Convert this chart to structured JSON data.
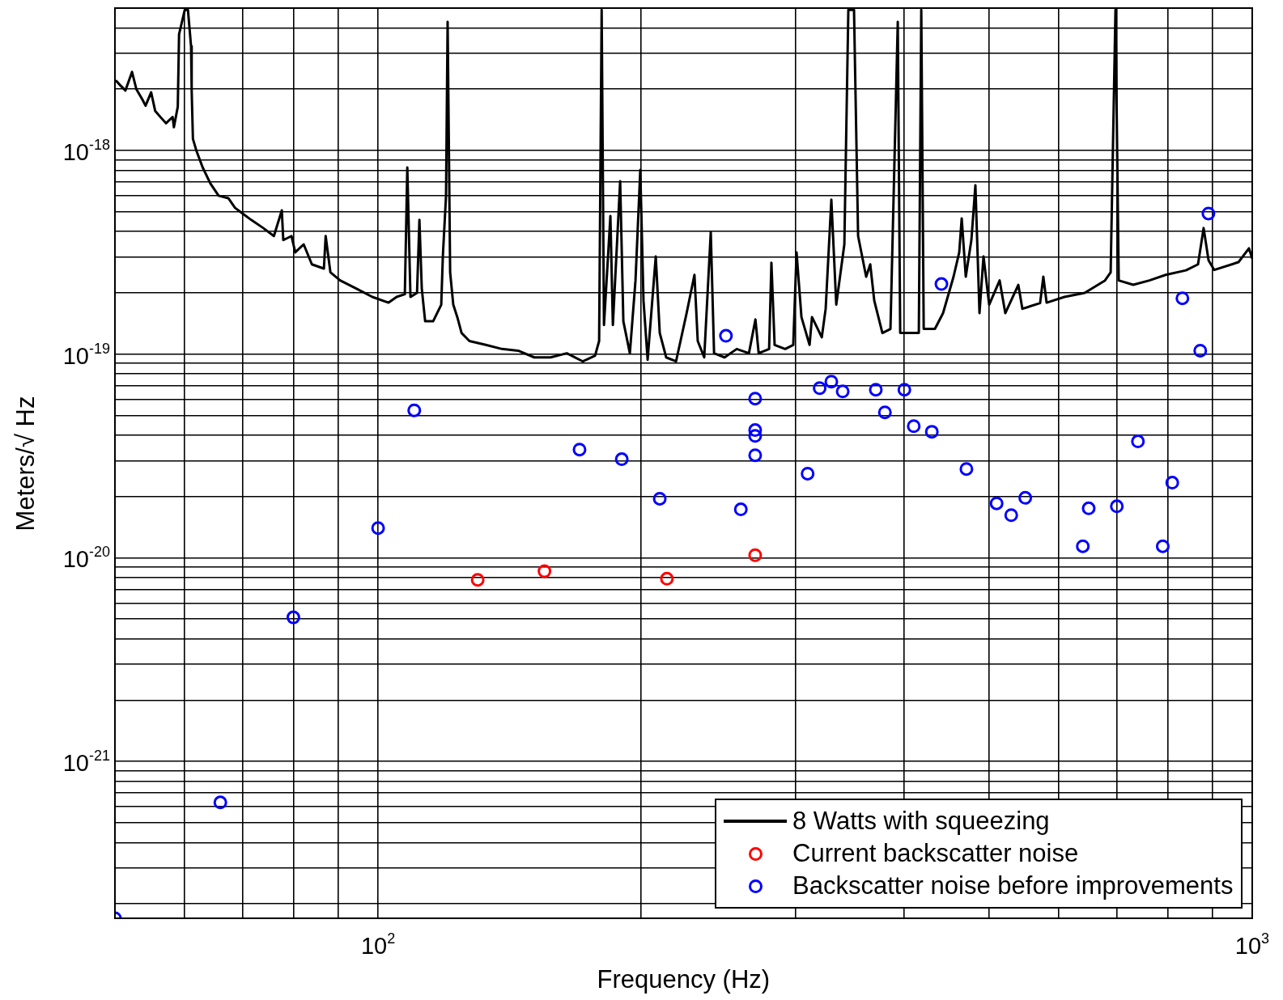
{
  "chart_data": {
    "type": "line",
    "xlabel": "Frequency (Hz)",
    "ylabel": "Meters/√ Hz",
    "log": "xy",
    "grid": true,
    "legend": "bottom right",
    "xlim": [
      50,
      1000
    ],
    "ylim": [
      1.7e-22,
      5e-18
    ],
    "xticks": [
      {
        "value": 60,
        "label": null
      },
      {
        "value": 70,
        "label": null
      },
      {
        "value": 80,
        "label": null
      },
      {
        "value": 90,
        "label": null
      },
      {
        "value": 100,
        "label": "10$^{2}$"
      },
      {
        "value": 200,
        "label": null
      },
      {
        "value": 300,
        "label": null
      },
      {
        "value": 400,
        "label": null
      },
      {
        "value": 500,
        "label": null
      },
      {
        "value": 600,
        "label": null
      },
      {
        "value": 700,
        "label": null
      },
      {
        "value": 800,
        "label": null
      },
      {
        "value": 900,
        "label": null
      },
      {
        "value": 1000,
        "label": "10$^{3}$"
      }
    ],
    "yticks": [
      {
        "value": 2e-22,
        "label": null
      },
      {
        "value": 3e-22,
        "label": null
      },
      {
        "value": 4e-22,
        "label": null
      },
      {
        "value": 5e-22,
        "label": null
      },
      {
        "value": 6e-22,
        "label": null
      },
      {
        "value": 7e-22,
        "label": null
      },
      {
        "value": 8e-22,
        "label": null
      },
      {
        "value": 9e-22,
        "label": null
      },
      {
        "value": 1e-21,
        "label": "10$^{-21}$"
      },
      {
        "value": 2e-21,
        "label": null
      },
      {
        "value": 3e-21,
        "label": null
      },
      {
        "value": 4e-21,
        "label": null
      },
      {
        "value": 5e-21,
        "label": null
      },
      {
        "value": 6e-21,
        "label": null
      },
      {
        "value": 7e-21,
        "label": null
      },
      {
        "value": 8e-21,
        "label": null
      },
      {
        "value": 9e-21,
        "label": null
      },
      {
        "value": 1e-20,
        "label": "10$^{-20}$"
      },
      {
        "value": 2e-20,
        "label": null
      },
      {
        "value": 3e-20,
        "label": null
      },
      {
        "value": 4e-20,
        "label": null
      },
      {
        "value": 5e-20,
        "label": null
      },
      {
        "value": 6e-20,
        "label": null
      },
      {
        "value": 7e-20,
        "label": null
      },
      {
        "value": 8e-20,
        "label": null
      },
      {
        "value": 9e-20,
        "label": null
      },
      {
        "value": 1e-19,
        "label": "10$^{-19}$"
      },
      {
        "value": 2e-19,
        "label": null
      },
      {
        "value": 3e-19,
        "label": null
      },
      {
        "value": 4e-19,
        "label": null
      },
      {
        "value": 5e-19,
        "label": null
      },
      {
        "value": 6e-19,
        "label": null
      },
      {
        "value": 7e-19,
        "label": null
      },
      {
        "value": 8e-19,
        "label": null
      },
      {
        "value": 9e-19,
        "label": null
      },
      {
        "value": 1e-18,
        "label": "10$^{-18}$"
      },
      {
        "value": 2e-18,
        "label": null
      },
      {
        "value": 3e-18,
        "label": null
      },
      {
        "value": 4e-18,
        "label": null
      }
    ],
    "series": [
      {
        "name": "8 Watts with squeezing",
        "marker": "none",
        "color": "#000000",
        "x": [
          50.1,
          50.7,
          51.4,
          52.3,
          52.9,
          53.7,
          54.2,
          55.0,
          55.6,
          56.6,
          57.2,
          58.2,
          58.4,
          59.0,
          59.2,
          60.1,
          60.6,
          61.1,
          61.2,
          61.4,
          62.0,
          63.0,
          64.3,
          65.7,
          67.4,
          68.6,
          70.0,
          71.6,
          73.9,
          76.0,
          77.6,
          77.9,
          79.6,
          80.4,
          82.2,
          84.0,
          86.7,
          87.1,
          88.2,
          90.5,
          94.4,
          98.5,
          102.8,
          105.0,
          107.3,
          108.0,
          108.9,
          110.8,
          111.5,
          112.2,
          113.2,
          115.6,
          118.1,
          118.6,
          119.6,
          120.1,
          120.9,
          121.9,
          123.2,
          124.6,
          127.2,
          132.8,
          138.6,
          144.6,
          150.9,
          157.5,
          164.4,
          171.5,
          177.1,
          179.0,
          180.2,
          181.3,
          184.4,
          185.6,
          189.2,
          190.8,
          194.1,
          197.0,
          199.5,
          201.2,
          203.4,
          207.8,
          210.0,
          213.6,
          219.2,
          225.4,
          230.1,
          232.1,
          236.1,
          240.2,
          242.3,
          249.1,
          257.2,
          265.6,
          270.2,
          272.5,
          280.1,
          281.8,
          284.2,
          292.2,
          298.5,
          301.1,
          305.0,
          311.6,
          313.6,
          321.8,
          325.1,
          330.0,
          334.3,
          341.5,
          345.1,
          350.3,
          354.1,
          361.7,
          365.6,
          369.5,
          377.5,
          385.6,
          393.1,
          395.6,
          406.7,
          415.5,
          418.2,
          420.9,
          433.5,
          442.9,
          455.3,
          462.2,
          465.2,
          470.2,
          477.2,
          482.3,
          487.5,
          492.7,
          500.1,
          514.1,
          521.8,
          540.0,
          545.8,
          571.9,
          576.8,
          581.8,
          609.8,
          643.2,
          678.5,
          688.7,
          697.5,
          703.5,
          730.9,
          762.7,
          796,
          839.8,
          866.9,
          879.8,
          891.3,
          904.8,
          964.5,
          991.5,
          1000
        ],
        "values": [
          2.21e-18,
          2.09e-18,
          1.97e-18,
          2.43e-18,
          2e-18,
          1.79e-18,
          1.66e-18,
          1.93e-18,
          1.56e-18,
          1.43e-18,
          1.36e-18,
          1.46e-18,
          1.3e-18,
          1.64e-18,
          3.72e-18,
          4.9e-18,
          4.9e-18,
          3.25e-18,
          1.97e-18,
          1.14e-18,
          9.9e-19,
          8.25e-19,
          6.88e-19,
          6e-19,
          5.83e-19,
          5.23e-19,
          4.9e-19,
          4.56e-19,
          4.16e-19,
          3.8e-19,
          5.08e-19,
          3.63e-19,
          3.8e-19,
          3.16e-19,
          3.46e-19,
          2.76e-19,
          2.63e-19,
          3.8e-19,
          2.52e-19,
          2.3e-19,
          2.1e-19,
          1.91e-19,
          1.79e-19,
          1.91e-19,
          1.97e-19,
          8.25e-19,
          1.91e-19,
          2e-19,
          4.56e-19,
          2.1e-19,
          1.45e-19,
          1.45e-19,
          1.75e-19,
          3.02e-19,
          6e-19,
          4.28e-18,
          2.52e-19,
          1.75e-19,
          1.52e-19,
          1.27e-19,
          1.16e-19,
          1.11e-19,
          1.06e-19,
          1.04e-19,
          9.64e-20,
          9.64e-20,
          1.01e-19,
          9.21e-20,
          9.82e-20,
          1.16e-19,
          4.9e-18,
          1.39e-19,
          4.77e-19,
          1.39e-19,
          7.07e-19,
          1.45e-19,
          1.01e-19,
          2.3e-19,
          8.03e-19,
          1.83e-19,
          9.38e-20,
          3.02e-19,
          1.27e-19,
          9.64e-20,
          9.21e-20,
          1.59e-19,
          2.45e-19,
          1.16e-19,
          9.64e-20,
          3.97e-19,
          1.01e-19,
          9.64e-20,
          1.06e-19,
          1.01e-19,
          1.48e-19,
          1.01e-19,
          1.06e-19,
          2.81e-19,
          1.11e-19,
          1.06e-19,
          1.11e-19,
          3.16e-19,
          1.52e-19,
          1.11e-19,
          1.52e-19,
          1.21e-19,
          1.67e-19,
          5.73e-19,
          1.75e-19,
          3.46e-19,
          4.9e-18,
          4.9e-18,
          3.8e-19,
          2.4e-19,
          2.76e-19,
          1.83e-19,
          1.27e-19,
          1.33e-19,
          4.28e-18,
          1.27e-19,
          1.27e-19,
          1.27e-19,
          4.9e-18,
          1.33e-19,
          1.33e-19,
          1.59e-19,
          2.4e-19,
          3.16e-19,
          4.64e-19,
          2.4e-19,
          3.63e-19,
          6.75e-19,
          1.59e-19,
          3.02e-19,
          1.75e-19,
          2.3e-19,
          1.59e-19,
          2.19e-19,
          1.67e-19,
          1.78e-19,
          2.4e-19,
          1.79e-19,
          1.91e-19,
          2e-19,
          2.3e-19,
          2.52e-19,
          4.9e-18,
          2.3e-19,
          2.19e-19,
          2.3e-19,
          2.45e-19,
          2.58e-19,
          2.76e-19,
          4.16e-19,
          2.89e-19,
          2.59e-19,
          2.83e-19,
          3.31e-19,
          2.94e-19
        ]
      },
      {
        "name": "Current backscatter noise",
        "type": "scatter",
        "marker": "circle",
        "color": "#ff0000",
        "x": [
          130,
          155,
          214,
          270
        ],
        "values": [
          7.8e-21,
          8.6e-21,
          7.9e-21,
          1.03e-20
        ]
      },
      {
        "name": "Backscatter noise before improvements",
        "type": "scatter",
        "marker": "circle",
        "color": "#0000ff",
        "x": [
          50,
          66,
          80,
          100,
          110,
          170,
          190,
          210,
          250,
          260,
          270,
          270,
          270,
          270,
          310,
          320,
          330,
          340,
          371,
          380,
          400,
          410,
          430,
          441,
          471,
          510,
          530,
          550,
          640,
          650,
          700,
          740,
          790,
          810,
          832,
          872,
          891
        ],
        "values": [
          1.7e-22,
          6.3e-22,
          5.1e-21,
          1.4e-20,
          5.3e-20,
          3.4e-20,
          3.05e-20,
          1.95e-20,
          1.23e-19,
          1.73e-20,
          6.05e-20,
          4.24e-20,
          3.97e-20,
          3.19e-20,
          2.59e-20,
          6.81e-20,
          7.33e-20,
          6.56e-20,
          6.69e-20,
          5.18e-20,
          6.69e-20,
          4.43e-20,
          4.16e-20,
          2.21e-19,
          2.73e-20,
          1.85e-20,
          1.62e-20,
          1.97e-20,
          1.14e-20,
          1.75e-20,
          1.79e-20,
          3.73e-20,
          1.14e-20,
          2.34e-20,
          1.88e-19,
          1.04e-19,
          4.9e-19
        ]
      }
    ]
  }
}
